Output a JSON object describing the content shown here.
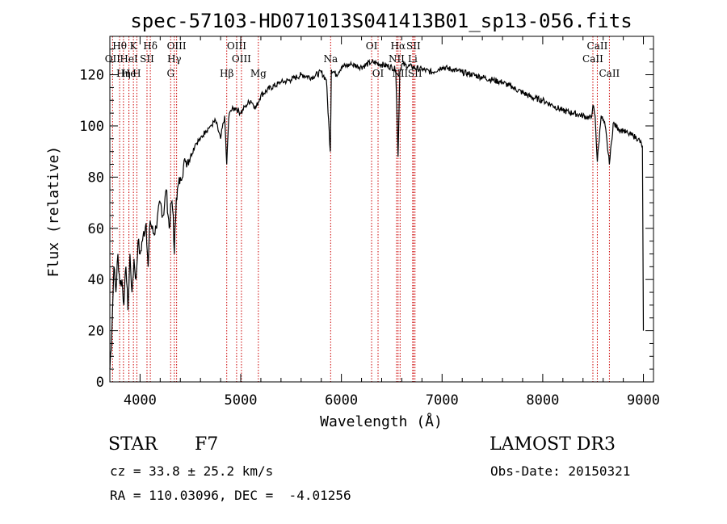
{
  "colors": {
    "spectrum": "#000000",
    "line_marker": "#cc0000",
    "axes": "#000000"
  },
  "chart_data": {
    "type": "line",
    "title": "spec-57103-HD071013S041413B01_sp13-056.fits",
    "xlabel": "Wavelength (Å)",
    "ylabel": "Flux (relative)",
    "xlim": [
      3700,
      9100
    ],
    "ylim": [
      0,
      135
    ],
    "xticks": [
      4000,
      5000,
      6000,
      7000,
      8000,
      9000
    ],
    "yticks": [
      0,
      20,
      40,
      60,
      80,
      100,
      120
    ],
    "series": [
      {
        "name": "flux",
        "x": [
          3700,
          3720,
          3740,
          3760,
          3780,
          3800,
          3820,
          3840,
          3860,
          3880,
          3900,
          3920,
          3940,
          3960,
          3980,
          4000,
          4030,
          4060,
          4080,
          4100,
          4130,
          4160,
          4200,
          4230,
          4260,
          4290,
          4310,
          4330,
          4340,
          4360,
          4400,
          4450,
          4500,
          4550,
          4600,
          4650,
          4700,
          4750,
          4800,
          4840,
          4861,
          4880,
          4900,
          4950,
          5000,
          5050,
          5100,
          5150,
          5200,
          5300,
          5400,
          5500,
          5600,
          5700,
          5800,
          5850,
          5890,
          5900,
          5950,
          6000,
          6100,
          6200,
          6300,
          6400,
          6500,
          6540,
          6563,
          6580,
          6600,
          6700,
          6800,
          6900,
          7000,
          7100,
          7200,
          7300,
          7400,
          7500,
          7600,
          7700,
          7800,
          7900,
          8000,
          8100,
          8200,
          8300,
          8400,
          8480,
          8498,
          8520,
          8542,
          8580,
          8620,
          8662,
          8700,
          8750,
          8800,
          8850,
          8900,
          8950,
          8990,
          9000
        ],
        "y": [
          5,
          20,
          45,
          35,
          50,
          38,
          40,
          30,
          45,
          28,
          50,
          35,
          48,
          40,
          55,
          50,
          57,
          62,
          45,
          63,
          58,
          60,
          70,
          65,
          75,
          60,
          70,
          65,
          50,
          72,
          80,
          86,
          88,
          93,
          95,
          98,
          100,
          102,
          95,
          104,
          85,
          103,
          106,
          107,
          105,
          108,
          110,
          107,
          112,
          115,
          117,
          118,
          120,
          119,
          121,
          118,
          90,
          122,
          120,
          123,
          124,
          123,
          125,
          124,
          123,
          122,
          88,
          121,
          124,
          123,
          122,
          121,
          123,
          122,
          121,
          120,
          119,
          118,
          117,
          115,
          113,
          111,
          110,
          108,
          106,
          105,
          104,
          103,
          108,
          104,
          86,
          104,
          100,
          85,
          101,
          99,
          98,
          97,
          96,
          95,
          92,
          20
        ]
      }
    ],
    "line_markers": [
      {
        "label": "Hθ",
        "wave": 3797,
        "row": 1
      },
      {
        "label": "OII",
        "wave": 3727,
        "row": 2
      },
      {
        "label": "Hη",
        "wave": 3835,
        "row": 3
      },
      {
        "label": "He",
        "wave": 3889,
        "row": 3
      },
      {
        "label": "K",
        "wave": 3934,
        "row": 1
      },
      {
        "label": "HeI",
        "wave": 3889,
        "row": 2
      },
      {
        "label": "SII",
        "wave": 4069,
        "row": 2
      },
      {
        "label": "H",
        "wave": 3968,
        "row": 3
      },
      {
        "label": "Hδ",
        "wave": 4102,
        "row": 1
      },
      {
        "label": "OIII",
        "wave": 4363,
        "row": 1
      },
      {
        "label": "Hγ",
        "wave": 4340,
        "row": 2
      },
      {
        "label": "G",
        "wave": 4304,
        "row": 3
      },
      {
        "label": "OIII",
        "wave": 4959,
        "row": 1
      },
      {
        "label": "OIII",
        "wave": 5007,
        "row": 2
      },
      {
        "label": "Hβ",
        "wave": 4861,
        "row": 3
      },
      {
        "label": "Mg",
        "wave": 5175,
        "row": 3
      },
      {
        "label": "Na",
        "wave": 5893,
        "row": 2
      },
      {
        "label": "OI",
        "wave": 6300,
        "row": 1
      },
      {
        "label": "OI",
        "wave": 6364,
        "row": 3
      },
      {
        "label": "Hα",
        "wave": 6563,
        "row": 1
      },
      {
        "label": "SII",
        "wave": 6716,
        "row": 1
      },
      {
        "label": "NII",
        "wave": 6548,
        "row": 2
      },
      {
        "label": "Li",
        "wave": 6708,
        "row": 2
      },
      {
        "label": "NII",
        "wave": 6583,
        "row": 3
      },
      {
        "label": "SII",
        "wave": 6731,
        "row": 3
      },
      {
        "label": "CaII",
        "wave": 8542,
        "row": 1
      },
      {
        "label": "CaII",
        "wave": 8498,
        "row": 2
      },
      {
        "label": "CaII",
        "wave": 8662,
        "row": 3
      }
    ]
  },
  "info": {
    "object_class": "STAR",
    "subclass": "F7",
    "survey": "LAMOST DR3",
    "cz": "cz = 33.8 ± 25.2 km/s",
    "obs_date": "Obs-Date: 20150321",
    "coords": "RA = 110.03096, DEC =  -4.01256"
  }
}
